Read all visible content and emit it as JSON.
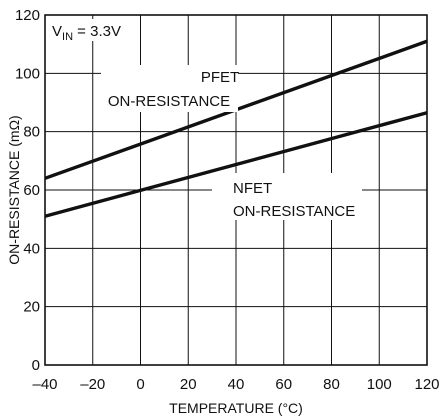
{
  "chart_data": {
    "type": "line",
    "xlabel": "TEMPERATURE (°C)",
    "ylabel": "ON-RESISTANCE (mΩ)",
    "xlim": [
      -40,
      120
    ],
    "ylim": [
      0,
      120
    ],
    "x_ticks": [
      "–40",
      "–20",
      "0",
      "20",
      "40",
      "60",
      "80",
      "100",
      "120"
    ],
    "y_ticks": [
      "0",
      "20",
      "40",
      "60",
      "80",
      "100",
      "120"
    ],
    "x_tick_values": [
      -40,
      -20,
      0,
      20,
      40,
      60,
      80,
      100,
      120
    ],
    "y_tick_values": [
      0,
      20,
      40,
      60,
      80,
      100,
      120
    ],
    "grid": true,
    "condition": {
      "main": "V",
      "sub": "IN",
      "rest": " = 3.3V"
    },
    "series": [
      {
        "name": "PFET ON-RESISTANCE",
        "label_lines": [
          "PFET",
          "ON-RESISTANCE"
        ],
        "x": [
          -40,
          120
        ],
        "y": [
          64,
          111
        ]
      },
      {
        "name": "NFET ON-RESISTANCE",
        "label_lines": [
          "NFET",
          "ON-RESISTANCE"
        ],
        "x": [
          -40,
          120
        ],
        "y": [
          51,
          86.5
        ]
      }
    ]
  }
}
